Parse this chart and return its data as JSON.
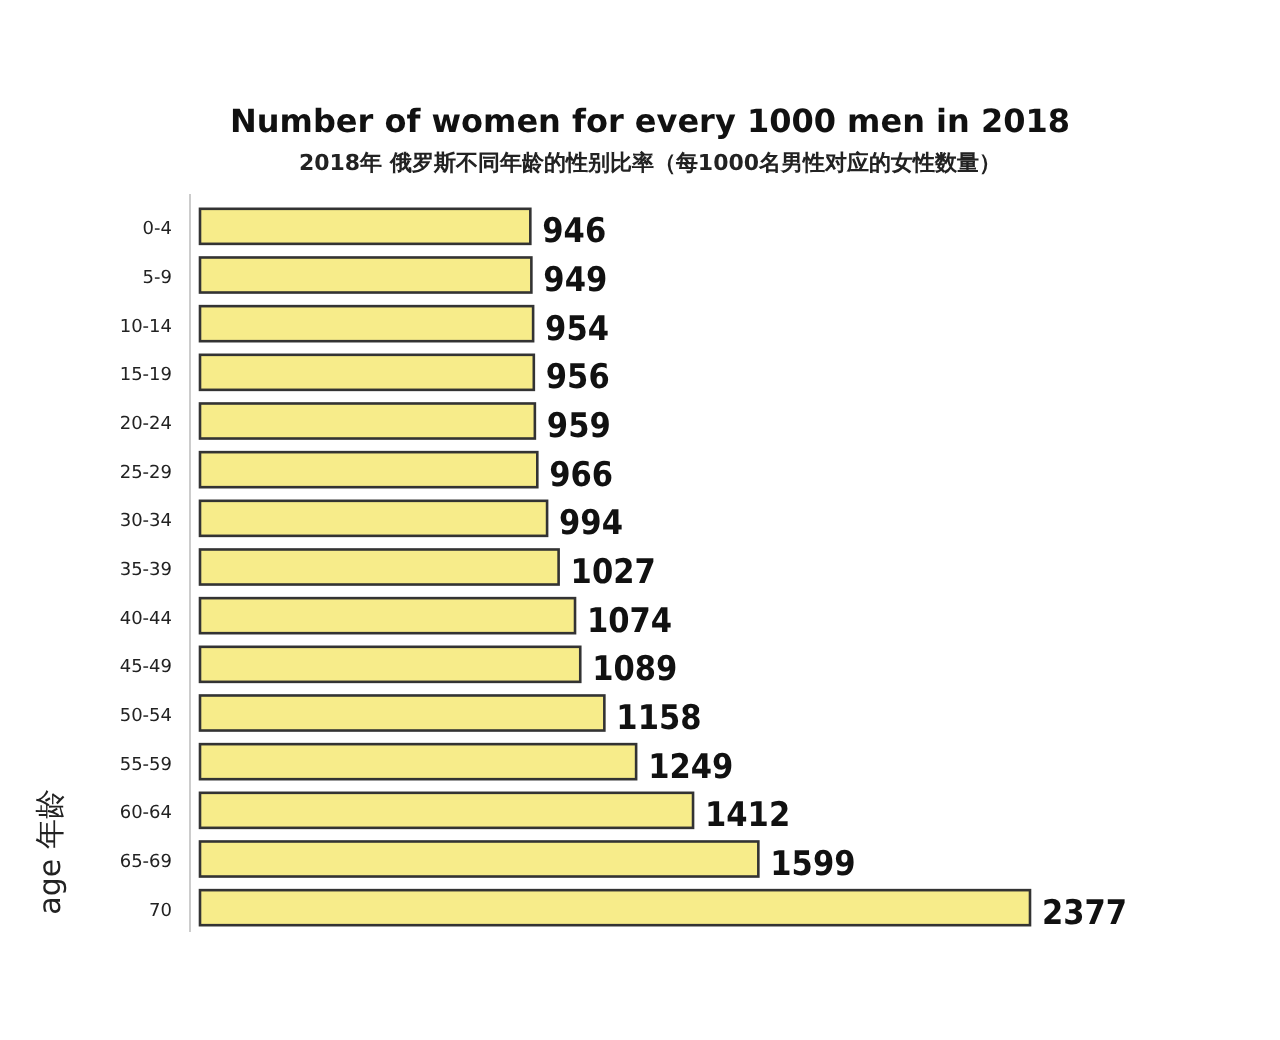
{
  "chart_data": {
    "type": "bar",
    "orientation": "horizontal",
    "title": "Number of women for every 1000 men in 2018",
    "subtitle": "2018年 俄罗斯不同年龄的性别比率（每1000名男性对应的女性数量）",
    "ylabel": "age 年龄",
    "categories": [
      "0-4",
      "5-9",
      "10-14",
      "15-19",
      "20-24",
      "25-29",
      "30-34",
      "35-39",
      "40-44",
      "45-49",
      "50-54",
      "55-59",
      "60-64",
      "65-69",
      "70"
    ],
    "values": [
      946,
      949,
      954,
      956,
      959,
      966,
      994,
      1027,
      1074,
      1089,
      1158,
      1249,
      1412,
      1599,
      2377
    ],
    "color": "#f7ec8a",
    "data_labels": true
  }
}
